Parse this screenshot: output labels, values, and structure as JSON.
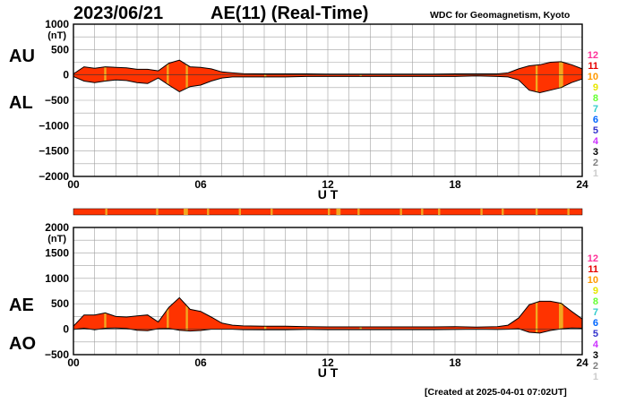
{
  "header": {
    "date": "2023/06/21",
    "title": "AE(11) (Real-Time)",
    "institution": "WDC for Geomagnetism, Kyoto"
  },
  "footer": {
    "created": "[Created at 2025-04-01 07:02UT]"
  },
  "legend": {
    "entries": [
      {
        "label": "12",
        "color": "#ff3399"
      },
      {
        "label": "11",
        "color": "#e60000"
      },
      {
        "label": "10",
        "color": "#ff9900"
      },
      {
        "label": "9",
        "color": "#e6e600"
      },
      {
        "label": "8",
        "color": "#66ff33"
      },
      {
        "label": "7",
        "color": "#33cccc"
      },
      {
        "label": "6",
        "color": "#0066ff"
      },
      {
        "label": "5",
        "color": "#3333cc"
      },
      {
        "label": "4",
        "color": "#cc33ff"
      },
      {
        "label": "3",
        "color": "#000000"
      },
      {
        "label": "2",
        "color": "#808080"
      },
      {
        "label": "1",
        "color": "#cccccc"
      }
    ]
  },
  "colors": {
    "fill": "#ff3300",
    "stations_low": "#f2a820",
    "grid": "#a0a0a0"
  },
  "chart_data": [
    {
      "type": "area",
      "name_labels": [
        "AU",
        "AL"
      ],
      "ylabel": "(nT)",
      "xlabel": "U T",
      "xlim": [
        0,
        24
      ],
      "ylim": [
        -2000,
        1000
      ],
      "xticks": [
        "00",
        "06",
        "12",
        "18",
        "24"
      ],
      "yticks": [
        "1000",
        "500",
        "0",
        "−500",
        "−1000",
        "−1500",
        "−2000"
      ],
      "grid": true,
      "x": [
        0,
        0.5,
        1,
        1.5,
        2,
        2.5,
        3,
        3.5,
        4,
        4.5,
        5,
        5.5,
        6,
        6.5,
        7,
        7.5,
        8,
        9,
        10,
        11,
        12,
        13,
        14,
        15,
        16,
        17,
        18,
        19,
        20,
        20.5,
        21,
        21.5,
        22,
        22.5,
        23,
        23.5,
        24
      ],
      "series": [
        {
          "name": "AU",
          "values": [
            20,
            160,
            130,
            160,
            150,
            140,
            110,
            110,
            80,
            230,
            290,
            160,
            150,
            120,
            60,
            40,
            25,
            20,
            20,
            20,
            15,
            15,
            15,
            15,
            15,
            15,
            20,
            20,
            20,
            40,
            120,
            180,
            200,
            250,
            260,
            200,
            120
          ]
        },
        {
          "name": "AL",
          "values": [
            -30,
            -120,
            -150,
            -120,
            -100,
            -110,
            -150,
            -170,
            -60,
            -200,
            -330,
            -230,
            -200,
            -120,
            -60,
            -40,
            -40,
            -40,
            -40,
            -30,
            -30,
            -30,
            -30,
            -30,
            -30,
            -30,
            -30,
            -20,
            -30,
            -40,
            -100,
            -300,
            -350,
            -300,
            -250,
            -150,
            -80
          ]
        }
      ],
      "low_station_bands": [
        [
          1.45,
          1.55
        ],
        [
          4.4,
          4.5
        ],
        [
          5.3,
          5.4
        ],
        [
          9.0,
          9.1
        ],
        [
          13.5,
          13.6
        ],
        [
          21.8,
          21.9
        ],
        [
          22.9,
          23.1
        ]
      ]
    },
    {
      "type": "area",
      "name_labels": [
        "AE",
        "AO"
      ],
      "ylabel": "(nT)",
      "xlabel": "U T",
      "xlim": [
        0,
        24
      ],
      "ylim": [
        -500,
        2000
      ],
      "xticks": [
        "00",
        "06",
        "12",
        "18",
        "24"
      ],
      "yticks": [
        "2000",
        "1500",
        "1000",
        "500",
        "0",
        "−500"
      ],
      "grid": true,
      "x": [
        0,
        0.5,
        1,
        1.5,
        2,
        2.5,
        3,
        3.5,
        4,
        4.5,
        5,
        5.5,
        6,
        6.5,
        7,
        7.5,
        8,
        9,
        10,
        11,
        12,
        13,
        14,
        15,
        16,
        17,
        18,
        19,
        20,
        20.5,
        21,
        21.5,
        22,
        22.5,
        23,
        23.5,
        24
      ],
      "series": [
        {
          "name": "AE",
          "values": [
            60,
            280,
            280,
            320,
            250,
            240,
            260,
            280,
            140,
            430,
            620,
            390,
            350,
            240,
            120,
            80,
            65,
            60,
            60,
            50,
            45,
            45,
            45,
            45,
            45,
            45,
            50,
            40,
            50,
            80,
            220,
            480,
            550,
            550,
            510,
            350,
            200
          ]
        },
        {
          "name": "AO",
          "values": [
            -5,
            20,
            -10,
            20,
            25,
            15,
            -20,
            -30,
            10,
            15,
            -20,
            -35,
            -25,
            0,
            0,
            0,
            -8,
            -10,
            -10,
            -5,
            -8,
            -8,
            -8,
            -8,
            -8,
            -8,
            -5,
            0,
            -5,
            0,
            10,
            -60,
            -75,
            -25,
            5,
            25,
            20
          ]
        }
      ],
      "low_station_bands": [
        [
          1.45,
          1.55
        ],
        [
          4.4,
          4.5
        ],
        [
          5.3,
          5.4
        ],
        [
          9.0,
          9.1
        ],
        [
          13.5,
          13.6
        ],
        [
          21.8,
          21.9
        ],
        [
          22.9,
          23.1
        ]
      ]
    }
  ],
  "status_bar": {
    "orange_segments": [
      [
        1.5,
        1.6
      ],
      [
        3.9,
        4.0
      ],
      [
        5.2,
        5.4
      ],
      [
        6.3,
        6.4
      ],
      [
        7.8,
        7.9
      ],
      [
        9.3,
        9.4
      ],
      [
        12.0,
        12.1
      ],
      [
        12.4,
        12.6
      ],
      [
        13.4,
        13.5
      ],
      [
        15.4,
        15.5
      ],
      [
        16.4,
        16.5
      ],
      [
        17.2,
        17.3
      ],
      [
        19.2,
        19.3
      ],
      [
        20.2,
        20.3
      ],
      [
        21.8,
        21.9
      ],
      [
        23.3,
        23.4
      ]
    ]
  }
}
